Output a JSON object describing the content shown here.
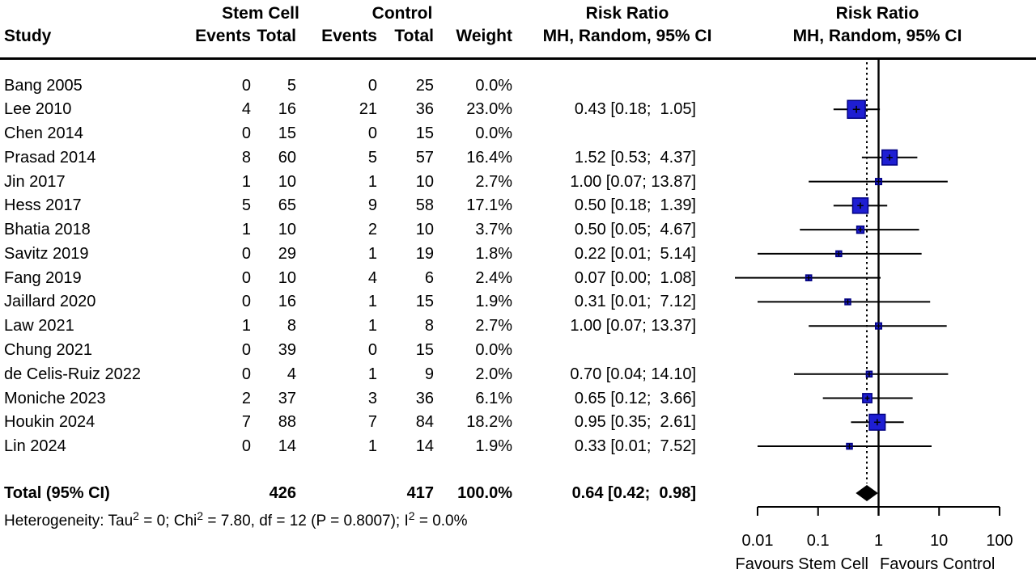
{
  "header": {
    "study": "Study",
    "group1": "Stem Cell",
    "group2": "Control",
    "events": "Events",
    "total": "Total",
    "weight": "Weight",
    "risk_ratio": "Risk Ratio",
    "method": "MH, Random, 95% CI"
  },
  "studies": [
    {
      "name": "Bang 2005",
      "events1": "0",
      "total1": "5",
      "events2": "0",
      "total2": "25",
      "weight": "0.0%",
      "rr_text": ""
    },
    {
      "name": "Lee 2010",
      "events1": "4",
      "total1": "16",
      "events2": "21",
      "total2": "36",
      "weight": "23.0%",
      "rr_text": "0.43 [0.18;  1.05]"
    },
    {
      "name": "Chen 2014",
      "events1": "0",
      "total1": "15",
      "events2": "0",
      "total2": "15",
      "weight": "0.0%",
      "rr_text": ""
    },
    {
      "name": "Prasad 2014",
      "events1": "8",
      "total1": "60",
      "events2": "5",
      "total2": "57",
      "weight": "16.4%",
      "rr_text": "1.52 [0.53;  4.37]"
    },
    {
      "name": "Jin 2017",
      "events1": "1",
      "total1": "10",
      "events2": "1",
      "total2": "10",
      "weight": "2.7%",
      "rr_text": "1.00 [0.07; 13.87]"
    },
    {
      "name": "Hess 2017",
      "events1": "5",
      "total1": "65",
      "events2": "9",
      "total2": "58",
      "weight": "17.1%",
      "rr_text": "0.50 [0.18;  1.39]"
    },
    {
      "name": "Bhatia 2018",
      "events1": "1",
      "total1": "10",
      "events2": "2",
      "total2": "10",
      "weight": "3.7%",
      "rr_text": "0.50 [0.05;  4.67]"
    },
    {
      "name": "Savitz 2019",
      "events1": "0",
      "total1": "29",
      "events2": "1",
      "total2": "19",
      "weight": "1.8%",
      "rr_text": "0.22 [0.01;  5.14]"
    },
    {
      "name": "Fang 2019",
      "events1": "0",
      "total1": "10",
      "events2": "4",
      "total2": "6",
      "weight": "2.4%",
      "rr_text": "0.07 [0.00;  1.08]"
    },
    {
      "name": "Jaillard 2020",
      "events1": "0",
      "total1": "16",
      "events2": "1",
      "total2": "15",
      "weight": "1.9%",
      "rr_text": "0.31 [0.01;  7.12]"
    },
    {
      "name": "Law 2021",
      "events1": "1",
      "total1": "8",
      "events2": "1",
      "total2": "8",
      "weight": "2.7%",
      "rr_text": "1.00 [0.07; 13.37]"
    },
    {
      "name": "Chung 2021",
      "events1": "0",
      "total1": "39",
      "events2": "0",
      "total2": "15",
      "weight": "0.0%",
      "rr_text": ""
    },
    {
      "name": "de Celis-Ruiz 2022",
      "events1": "0",
      "total1": "4",
      "events2": "1",
      "total2": "9",
      "weight": "2.0%",
      "rr_text": "0.70 [0.04; 14.10]"
    },
    {
      "name": "Moniche 2023",
      "events1": "2",
      "total1": "37",
      "events2": "3",
      "total2": "36",
      "weight": "6.1%",
      "rr_text": "0.65 [0.12;  3.66]"
    },
    {
      "name": "Houkin 2024",
      "events1": "7",
      "total1": "88",
      "events2": "7",
      "total2": "84",
      "weight": "18.2%",
      "rr_text": "0.95 [0.35;  2.61]"
    },
    {
      "name": "Lin 2024",
      "events1": "0",
      "total1": "14",
      "events2": "1",
      "total2": "14",
      "weight": "1.9%",
      "rr_text": "0.33 [0.01;  7.52]"
    }
  ],
  "total_row": {
    "label": "Total (95% CI)",
    "total1": "426",
    "total2": "417",
    "weight": "100.0%",
    "rr_text": "0.64 [0.42;  0.98]"
  },
  "heterogeneity": {
    "parts": [
      "Heterogeneity: Tau",
      "2",
      " = 0; Chi",
      "2",
      " = 7.80, df = 12 (P = 0.8007); I",
      "2",
      " = 0.0%"
    ]
  },
  "axis": {
    "tick_labels": [
      "0.01",
      "0.1",
      "1",
      "10",
      "100"
    ],
    "favours_left": "Favours Stem Cell",
    "favours_right": "Favours Control"
  },
  "chart_data": {
    "type": "forest",
    "x_scale": "log",
    "xlim": [
      0.01,
      100
    ],
    "ticks": [
      0.01,
      0.1,
      1,
      10,
      100
    ],
    "ref_line": 1,
    "effect_measure": "Risk Ratio",
    "model": "MH, Random, 95% CI",
    "studies": [
      {
        "name": "Lee 2010",
        "rr": 0.43,
        "low": 0.18,
        "high": 1.05,
        "weight": 23.0
      },
      {
        "name": "Prasad 2014",
        "rr": 1.52,
        "low": 0.53,
        "high": 4.37,
        "weight": 16.4
      },
      {
        "name": "Jin 2017",
        "rr": 1.0,
        "low": 0.07,
        "high": 13.87,
        "weight": 2.7
      },
      {
        "name": "Hess 2017",
        "rr": 0.5,
        "low": 0.18,
        "high": 1.39,
        "weight": 17.1
      },
      {
        "name": "Bhatia 2018",
        "rr": 0.5,
        "low": 0.05,
        "high": 4.67,
        "weight": 3.7
      },
      {
        "name": "Savitz 2019",
        "rr": 0.22,
        "low": 0.01,
        "high": 5.14,
        "weight": 1.8
      },
      {
        "name": "Fang 2019",
        "rr": 0.07,
        "low": 0.0,
        "high": 1.08,
        "weight": 2.4
      },
      {
        "name": "Jaillard 2020",
        "rr": 0.31,
        "low": 0.01,
        "high": 7.12,
        "weight": 1.9
      },
      {
        "name": "Law 2021",
        "rr": 1.0,
        "low": 0.07,
        "high": 13.37,
        "weight": 2.7
      },
      {
        "name": "de Celis-Ruiz 2022",
        "rr": 0.7,
        "low": 0.04,
        "high": 14.1,
        "weight": 2.0
      },
      {
        "name": "Moniche 2023",
        "rr": 0.65,
        "low": 0.12,
        "high": 3.66,
        "weight": 6.1
      },
      {
        "name": "Houkin 2024",
        "rr": 0.95,
        "low": 0.35,
        "high": 2.61,
        "weight": 18.2
      },
      {
        "name": "Lin 2024",
        "rr": 0.33,
        "low": 0.01,
        "high": 7.52,
        "weight": 1.9
      }
    ],
    "pooled": {
      "label": "Total (95% CI)",
      "rr": 0.64,
      "low": 0.42,
      "high": 0.98
    },
    "colors": {
      "square": "#1e1ed2",
      "square_border": "#000080",
      "diamond": "#000000",
      "line": "#000000"
    }
  }
}
